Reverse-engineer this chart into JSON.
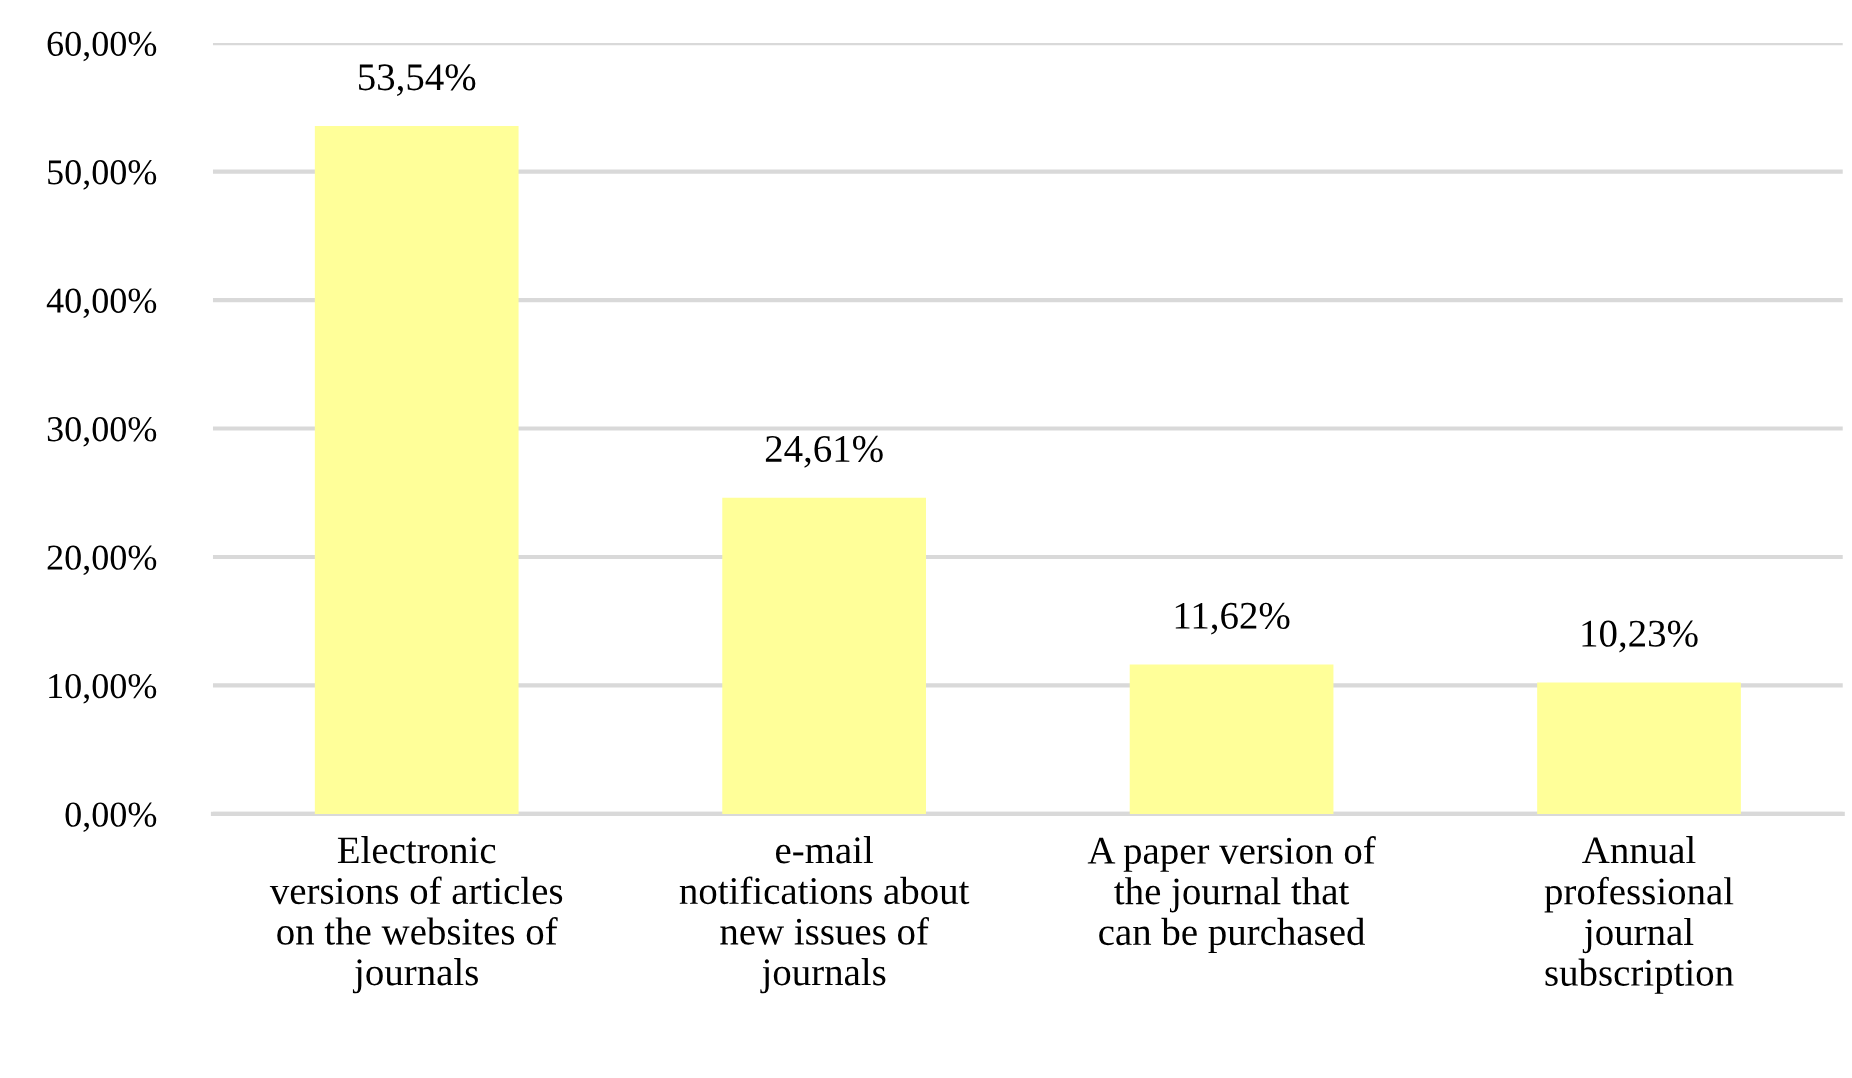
{
  "chart_data": {
    "type": "bar",
    "categories": [
      "Electronic\nversions of articles\non the websites of\njournals",
      "e-mail\nnotifications about\nnew issues of\njournals",
      "A paper version of\nthe journal that\ncan be purchased",
      "Annual\nprofessional\njournal\nsubscription"
    ],
    "values": [
      53.54,
      24.61,
      11.62,
      10.23
    ],
    "value_labels": [
      "53,54%",
      "24,61%",
      "11,62%",
      "10,23%"
    ],
    "color": "#ffff99",
    "ylim": [
      0,
      60
    ],
    "yticks": [
      {
        "value": 0,
        "label": "0,00%"
      },
      {
        "value": 10,
        "label": "10,00%"
      },
      {
        "value": 20,
        "label": "20,00%"
      },
      {
        "value": 30,
        "label": "30,00%"
      },
      {
        "value": 40,
        "label": "40,00%"
      },
      {
        "value": 50,
        "label": "50,00%"
      },
      {
        "value": 60,
        "label": "60,00%"
      }
    ],
    "grid": "y"
  }
}
